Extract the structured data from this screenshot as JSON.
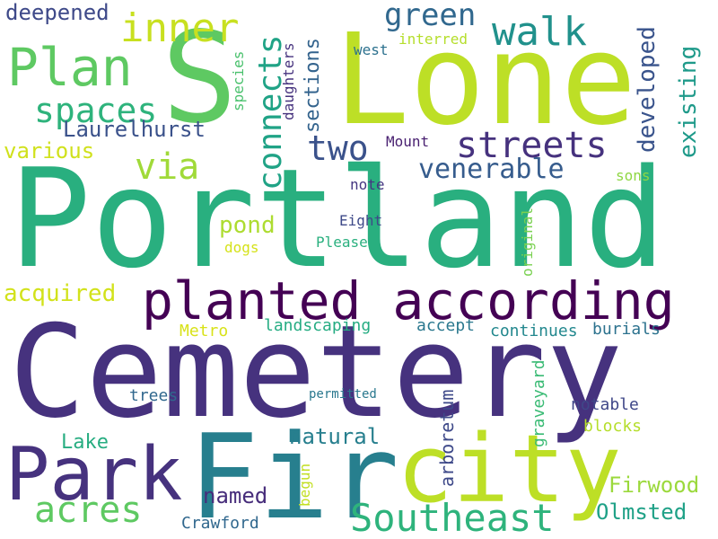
{
  "word_cloud": {
    "words": [
      {
        "text": "Cemetery",
        "color": "#46327e"
      },
      {
        "text": "Portland",
        "color": "#29af7f"
      },
      {
        "text": "Lone",
        "color": "#bddf26"
      },
      {
        "text": "S",
        "color": "#5ec962"
      },
      {
        "text": "Fir",
        "color": "#277f8e"
      },
      {
        "text": "city",
        "color": "#bddf26"
      },
      {
        "text": "Park",
        "color": "#46327e"
      },
      {
        "text": "planted according",
        "color": "#440154"
      },
      {
        "text": "Southeast",
        "color": "#2eb37c"
      },
      {
        "text": "Plan",
        "color": "#5ec962"
      },
      {
        "text": "inner",
        "color": "#c8e020"
      },
      {
        "text": "walk",
        "color": "#21918c"
      },
      {
        "text": "green",
        "color": "#31688e"
      },
      {
        "text": "streets",
        "color": "#46327e"
      },
      {
        "text": "spaces",
        "color": "#2eb37c"
      },
      {
        "text": "via",
        "color": "#a0da39"
      },
      {
        "text": "two",
        "color": "#3b528b"
      },
      {
        "text": "venerable",
        "color": "#365c8d"
      },
      {
        "text": "acres",
        "color": "#5ec962"
      },
      {
        "text": "Laurelhurst",
        "color": "#3b528b"
      },
      {
        "text": "various",
        "color": "#d0e11c"
      },
      {
        "text": "deepened",
        "color": "#3e4989"
      },
      {
        "text": "acquired",
        "color": "#d2e21b"
      },
      {
        "text": "pond",
        "color": "#addc30"
      },
      {
        "text": "natural",
        "color": "#277f8e"
      },
      {
        "text": "named",
        "color": "#472d7b"
      },
      {
        "text": "Lake",
        "color": "#27ad81"
      },
      {
        "text": "Olmsted",
        "color": "#1fa187"
      },
      {
        "text": "Firwood",
        "color": "#9bd93c"
      },
      {
        "text": "Crawford",
        "color": "#31688e"
      },
      {
        "text": "landscaping",
        "color": "#25ac82"
      },
      {
        "text": "accept",
        "color": "#2a788e"
      },
      {
        "text": "continues",
        "color": "#23888e"
      },
      {
        "text": "burials",
        "color": "#2c728e"
      },
      {
        "text": "Metro",
        "color": "#d8e219"
      },
      {
        "text": "trees",
        "color": "#31688e"
      },
      {
        "text": "notable",
        "color": "#3f4788"
      },
      {
        "text": "blocks",
        "color": "#b5de2b"
      },
      {
        "text": "permitted",
        "color": "#2a788e"
      },
      {
        "text": "Mount",
        "color": "#481f70"
      },
      {
        "text": "note",
        "color": "#453781"
      },
      {
        "text": "Eight",
        "color": "#3e4a89"
      },
      {
        "text": "Please",
        "color": "#2ab07f"
      },
      {
        "text": "dogs",
        "color": "#d5e21a"
      },
      {
        "text": "sons",
        "color": "#8fd744"
      },
      {
        "text": "west",
        "color": "#2c718e"
      },
      {
        "text": "interred",
        "color": "#b5de2b"
      },
      {
        "text": "connects",
        "color": "#20a386"
      },
      {
        "text": "developed",
        "color": "#3a548c"
      },
      {
        "text": "existing",
        "color": "#1f9a8a"
      },
      {
        "text": "sections",
        "color": "#33638d"
      },
      {
        "text": "daughters",
        "color": "#46327e"
      },
      {
        "text": "species",
        "color": "#4ac16d"
      },
      {
        "text": "arboretum",
        "color": "#3e4989"
      },
      {
        "text": "graveyard",
        "color": "#3bbb75"
      },
      {
        "text": "original",
        "color": "#7ad151"
      },
      {
        "text": "begun",
        "color": "#c2df23"
      }
    ]
  }
}
